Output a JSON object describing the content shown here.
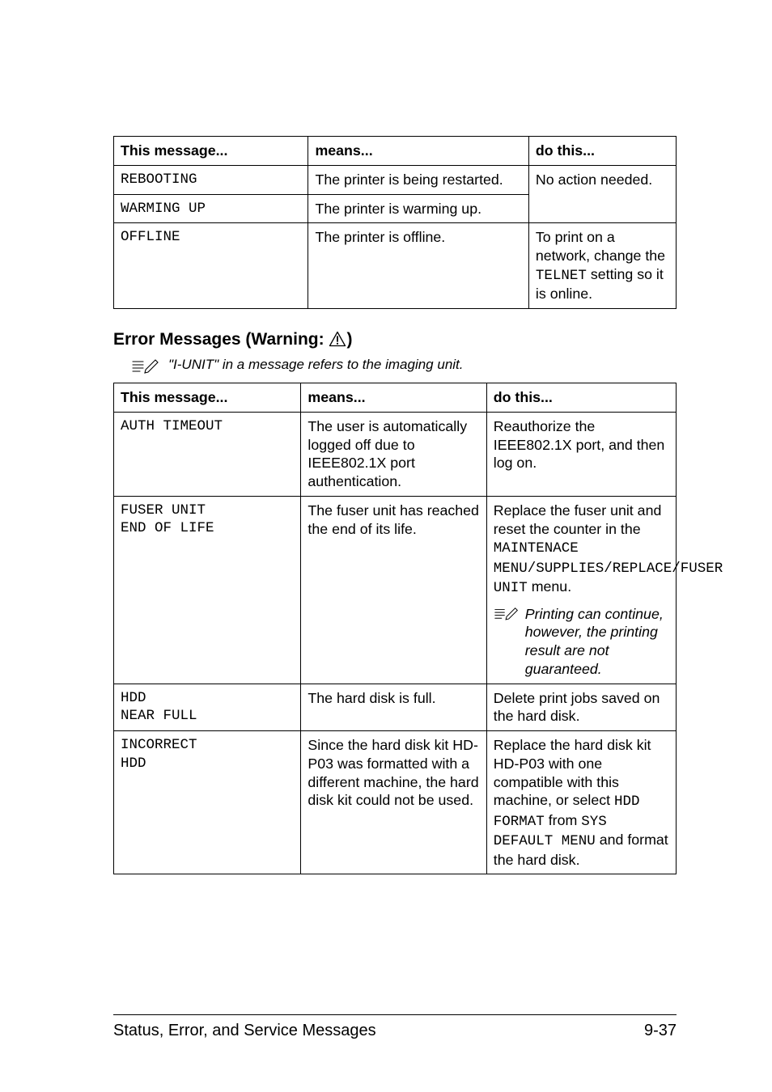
{
  "table1": {
    "cols": [
      "This message...",
      "means...",
      "do this..."
    ],
    "col_widths": [
      "34.6%",
      "39.2%",
      "26.2%"
    ],
    "rows": [
      {
        "c0_mono": "REBOOTING",
        "c1": "The printer is being restarted.",
        "c2_prefix": "No action needed.",
        "c2_rowspan": 2
      },
      {
        "c0_mono": "WARMING UP",
        "c1": "The printer is warming up."
      },
      {
        "c0_mono": "OFFLINE",
        "c1": "The printer is offline.",
        "c2_parts": [
          {
            "t": "To print on a network, change the "
          },
          {
            "t": "TELNET",
            "mono": true
          },
          {
            "t": " setting so it is online."
          }
        ]
      }
    ]
  },
  "section_title_prefix": "Error Messages (Warning: ",
  "section_title_suffix": ")",
  "note_text": "\"I-UNIT\" in a message refers to the imaging unit.",
  "table2": {
    "cols": [
      "This message...",
      "means...",
      "do this..."
    ],
    "col_widths": [
      "33.3%",
      "33%",
      "33.7%"
    ],
    "rows": [
      {
        "c0_mono": "AUTH TIMEOUT",
        "c1": "The user is automati­cally logged off due to IEEE802.1X port authentication.",
        "c2": "Reauthorize the IEEE802.1X port, and then log on."
      },
      {
        "c0_mono_lines": [
          "FUSER UNIT",
          "END OF LIFE"
        ],
        "c1": "The fuser unit has reached the end of its life.",
        "c2_complex": {
          "top_parts": [
            {
              "t": "Replace the fuser unit and reset the counter in the "
            },
            {
              "t": "MAINTENACE MENU/SUPPLIES/REPLACE/FUSER UNIT",
              "mono": true
            },
            {
              "t": " menu."
            }
          ],
          "sub_note": "Printing can continue, however, the printing result are not guaranteed."
        }
      },
      {
        "c0_mono_lines": [
          "HDD",
          "NEAR FULL"
        ],
        "c1": "The hard disk is full.",
        "c2": "Delete print jobs saved on the hard disk."
      },
      {
        "c0_mono_lines": [
          "INCORRECT",
          "HDD"
        ],
        "c1": "Since the hard disk kit HD-P03 was formatted with a different machine, the hard disk kit could not be used.",
        "c2_parts": [
          {
            "t": "Replace the hard disk kit HD-P03 with one compatible with this machine, or select "
          },
          {
            "t": "HDD FORMAT",
            "mono": true
          },
          {
            "t": " from "
          },
          {
            "t": "SYS DEFAULT MENU",
            "mono": true
          },
          {
            "t": " and format the hard disk."
          }
        ]
      }
    ]
  },
  "footer_left": "Status, Error, and Service Messages",
  "footer_right": "9-37"
}
